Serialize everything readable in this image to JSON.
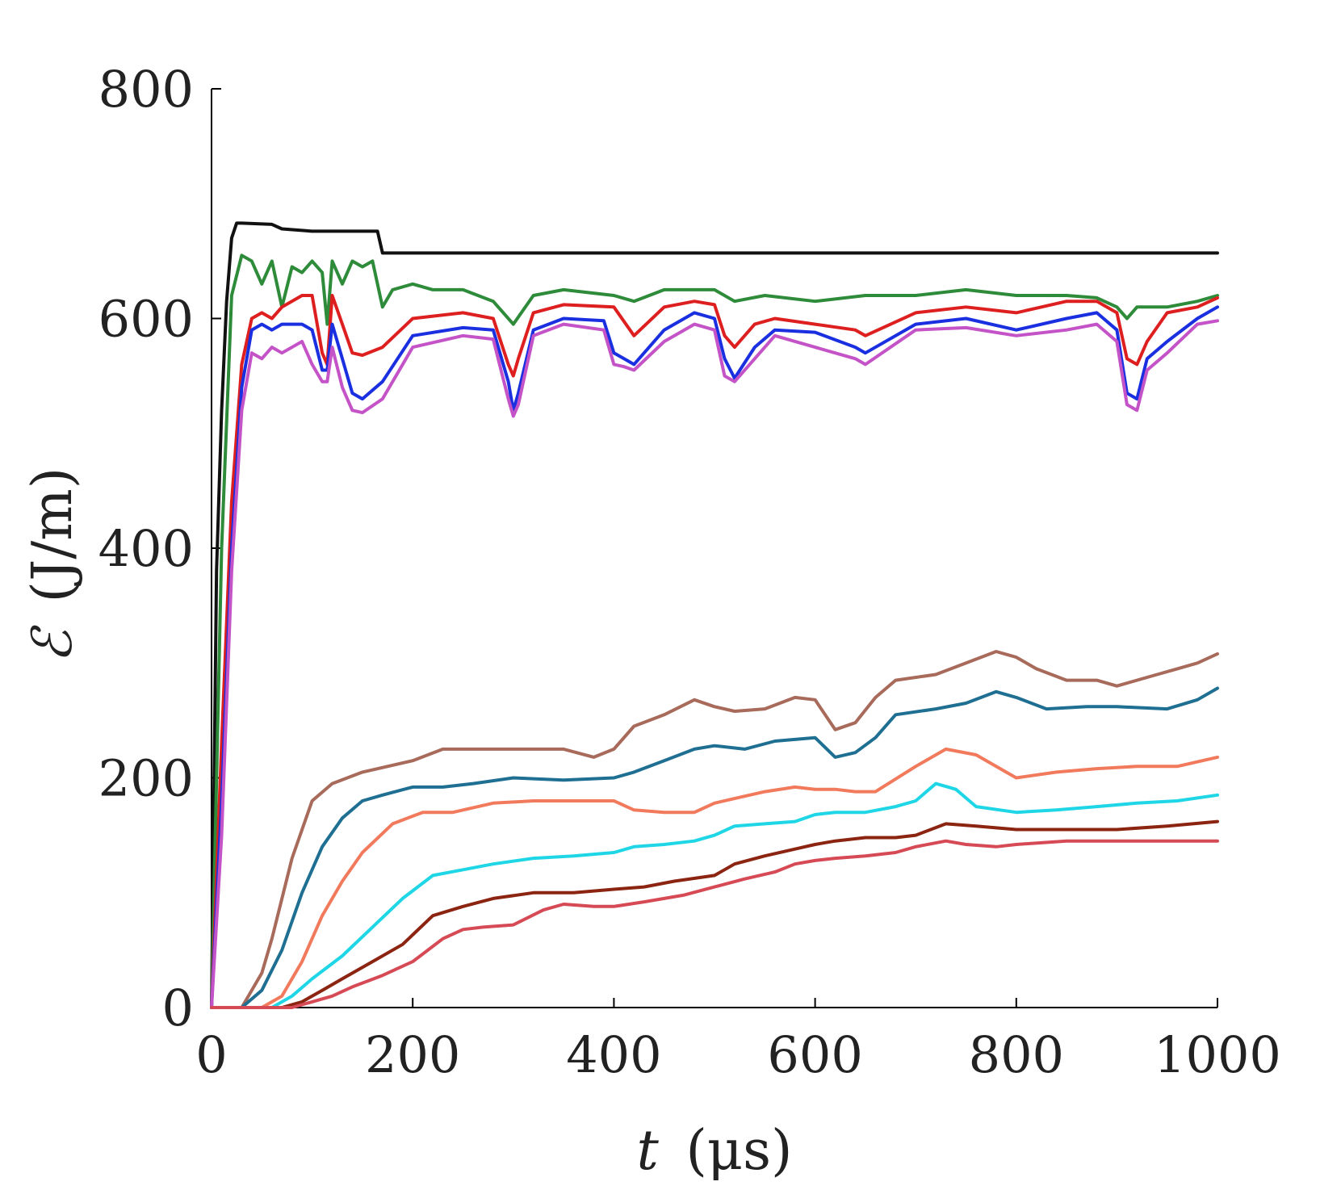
{
  "chart_data": {
    "type": "line",
    "title": "",
    "xlabel_italic": "t",
    "xlabel_unit": "(μs)",
    "ylabel_symbol": "ℰ",
    "ylabel_unit": "(J/m)",
    "xlim": [
      0,
      1000
    ],
    "ylim": [
      0,
      800
    ],
    "xticks": [
      0,
      200,
      400,
      600,
      800,
      1000
    ],
    "yticks": [
      0,
      200,
      400,
      600,
      800
    ],
    "grid": false,
    "legend": "none",
    "series": [
      {
        "name": "black",
        "color": "#111111",
        "x": [
          0,
          5,
          10,
          15,
          20,
          25,
          30,
          60,
          70,
          100,
          165,
          170,
          1000
        ],
        "y": [
          0,
          380,
          520,
          615,
          670,
          683,
          683,
          682,
          678,
          676,
          676,
          657,
          657
        ]
      },
      {
        "name": "green",
        "color": "#2e8b3a",
        "x": [
          0,
          10,
          20,
          30,
          40,
          50,
          60,
          70,
          80,
          90,
          100,
          110,
          115,
          120,
          130,
          140,
          150,
          160,
          170,
          180,
          200,
          220,
          250,
          280,
          300,
          320,
          350,
          400,
          420,
          450,
          500,
          520,
          550,
          600,
          650,
          700,
          750,
          800,
          850,
          880,
          900,
          910,
          920,
          950,
          980,
          1000
        ],
        "y": [
          0,
          400,
          620,
          655,
          650,
          630,
          650,
          610,
          645,
          640,
          650,
          640,
          595,
          650,
          630,
          650,
          645,
          650,
          610,
          625,
          630,
          625,
          625,
          615,
          595,
          620,
          625,
          620,
          615,
          625,
          625,
          615,
          620,
          615,
          620,
          620,
          625,
          620,
          620,
          618,
          610,
          600,
          610,
          610,
          615,
          620
        ]
      },
      {
        "name": "red",
        "color": "#dd1f1f",
        "x": [
          0,
          10,
          20,
          30,
          40,
          50,
          60,
          70,
          90,
          100,
          110,
          115,
          120,
          130,
          140,
          150,
          170,
          200,
          250,
          280,
          295,
          300,
          305,
          320,
          350,
          400,
          420,
          450,
          480,
          500,
          510,
          520,
          540,
          560,
          600,
          640,
          650,
          700,
          750,
          800,
          850,
          880,
          900,
          910,
          920,
          930,
          950,
          980,
          1000
        ],
        "y": [
          0,
          230,
          440,
          560,
          600,
          605,
          600,
          610,
          620,
          620,
          570,
          560,
          620,
          595,
          570,
          568,
          575,
          600,
          605,
          600,
          560,
          550,
          565,
          605,
          612,
          610,
          585,
          610,
          615,
          612,
          585,
          575,
          595,
          600,
          595,
          590,
          585,
          605,
          610,
          605,
          615,
          615,
          605,
          565,
          560,
          580,
          605,
          610,
          618
        ]
      },
      {
        "name": "blue",
        "color": "#1a2fe0",
        "x": [
          0,
          10,
          20,
          30,
          40,
          50,
          60,
          70,
          90,
          100,
          110,
          115,
          120,
          130,
          140,
          150,
          170,
          200,
          250,
          280,
          295,
          300,
          305,
          320,
          350,
          390,
          400,
          410,
          420,
          450,
          480,
          500,
          510,
          520,
          540,
          560,
          600,
          640,
          650,
          700,
          750,
          800,
          850,
          880,
          900,
          910,
          920,
          930,
          950,
          980,
          1000
        ],
        "y": [
          0,
          180,
          400,
          540,
          590,
          595,
          590,
          595,
          595,
          590,
          555,
          555,
          595,
          565,
          535,
          530,
          545,
          585,
          592,
          590,
          545,
          520,
          535,
          590,
          600,
          598,
          570,
          565,
          560,
          590,
          605,
          600,
          565,
          548,
          575,
          590,
          588,
          575,
          570,
          595,
          600,
          590,
          600,
          605,
          590,
          535,
          530,
          565,
          580,
          600,
          610
        ]
      },
      {
        "name": "magenta",
        "color": "#c453c8",
        "x": [
          0,
          10,
          20,
          30,
          40,
          50,
          60,
          70,
          90,
          100,
          110,
          115,
          120,
          130,
          140,
          150,
          170,
          200,
          250,
          280,
          295,
          300,
          305,
          320,
          350,
          390,
          400,
          410,
          420,
          450,
          480,
          500,
          510,
          520,
          540,
          560,
          600,
          640,
          650,
          700,
          750,
          800,
          850,
          880,
          900,
          910,
          920,
          930,
          950,
          980,
          1000
        ],
        "y": [
          0,
          150,
          380,
          520,
          570,
          565,
          575,
          570,
          580,
          560,
          545,
          545,
          575,
          540,
          520,
          518,
          530,
          575,
          585,
          582,
          530,
          515,
          525,
          585,
          595,
          590,
          560,
          558,
          555,
          580,
          595,
          590,
          550,
          545,
          565,
          585,
          575,
          565,
          560,
          590,
          592,
          585,
          590,
          595,
          580,
          525,
          520,
          555,
          570,
          595,
          598
        ]
      },
      {
        "name": "brown",
        "color": "#a86a5a",
        "x": [
          0,
          30,
          50,
          60,
          80,
          100,
          120,
          150,
          200,
          230,
          260,
          300,
          350,
          380,
          400,
          420,
          450,
          480,
          500,
          520,
          550,
          580,
          600,
          620,
          640,
          660,
          680,
          720,
          750,
          780,
          800,
          820,
          850,
          880,
          900,
          940,
          960,
          980,
          1000
        ],
        "y": [
          0,
          0,
          30,
          60,
          130,
          180,
          195,
          205,
          215,
          225,
          225,
          225,
          225,
          218,
          225,
          245,
          255,
          268,
          262,
          258,
          260,
          270,
          268,
          242,
          248,
          270,
          285,
          290,
          300,
          310,
          305,
          295,
          285,
          285,
          280,
          290,
          295,
          300,
          308
        ]
      },
      {
        "name": "teal",
        "color": "#1f6f92",
        "x": [
          0,
          30,
          50,
          70,
          90,
          110,
          130,
          150,
          170,
          200,
          230,
          260,
          300,
          350,
          400,
          420,
          450,
          480,
          500,
          530,
          560,
          600,
          620,
          640,
          660,
          680,
          720,
          750,
          780,
          800,
          830,
          870,
          900,
          950,
          980,
          1000
        ],
        "y": [
          0,
          0,
          15,
          50,
          100,
          140,
          165,
          180,
          185,
          192,
          192,
          195,
          200,
          198,
          200,
          205,
          215,
          225,
          228,
          225,
          232,
          235,
          218,
          222,
          235,
          255,
          260,
          265,
          275,
          270,
          260,
          262,
          262,
          260,
          268,
          278
        ]
      },
      {
        "name": "salmon",
        "color": "#f27a5c",
        "x": [
          0,
          50,
          70,
          90,
          110,
          130,
          150,
          180,
          210,
          240,
          280,
          320,
          360,
          400,
          420,
          450,
          480,
          500,
          520,
          550,
          580,
          600,
          620,
          640,
          660,
          700,
          730,
          760,
          790,
          800,
          840,
          880,
          920,
          960,
          1000
        ],
        "y": [
          0,
          0,
          10,
          40,
          80,
          110,
          135,
          160,
          170,
          170,
          178,
          180,
          180,
          180,
          172,
          170,
          170,
          178,
          182,
          188,
          192,
          190,
          190,
          188,
          188,
          210,
          225,
          220,
          205,
          200,
          205,
          208,
          210,
          210,
          218
        ]
      },
      {
        "name": "cyan",
        "color": "#1fd6e6",
        "x": [
          0,
          60,
          80,
          100,
          130,
          160,
          190,
          220,
          250,
          280,
          320,
          360,
          400,
          420,
          450,
          480,
          500,
          520,
          550,
          580,
          600,
          620,
          650,
          680,
          700,
          720,
          740,
          760,
          800,
          840,
          880,
          920,
          960,
          1000
        ],
        "y": [
          0,
          0,
          10,
          25,
          45,
          70,
          95,
          115,
          120,
          125,
          130,
          132,
          135,
          140,
          142,
          145,
          150,
          158,
          160,
          162,
          168,
          170,
          170,
          175,
          180,
          195,
          190,
          175,
          170,
          172,
          175,
          178,
          180,
          185
        ]
      },
      {
        "name": "dark-red",
        "color": "#8b2410",
        "x": [
          0,
          70,
          90,
          110,
          130,
          160,
          190,
          220,
          250,
          280,
          320,
          360,
          400,
          430,
          460,
          500,
          520,
          550,
          580,
          600,
          620,
          650,
          680,
          700,
          730,
          760,
          800,
          850,
          900,
          950,
          1000
        ],
        "y": [
          0,
          0,
          5,
          15,
          25,
          40,
          55,
          80,
          88,
          95,
          100,
          100,
          103,
          105,
          110,
          115,
          125,
          132,
          138,
          142,
          145,
          148,
          148,
          150,
          160,
          158,
          155,
          155,
          155,
          158,
          162
        ]
      },
      {
        "name": "rose",
        "color": "#d64a55",
        "x": [
          0,
          80,
          100,
          120,
          140,
          170,
          200,
          230,
          250,
          270,
          300,
          330,
          350,
          380,
          400,
          430,
          470,
          500,
          530,
          560,
          580,
          600,
          620,
          650,
          680,
          700,
          730,
          750,
          780,
          800,
          850,
          900,
          950,
          1000
        ],
        "y": [
          0,
          0,
          5,
          10,
          18,
          28,
          40,
          60,
          68,
          70,
          72,
          85,
          90,
          88,
          88,
          92,
          98,
          105,
          112,
          118,
          125,
          128,
          130,
          132,
          135,
          140,
          145,
          142,
          140,
          142,
          145,
          145,
          145,
          145
        ]
      }
    ]
  }
}
